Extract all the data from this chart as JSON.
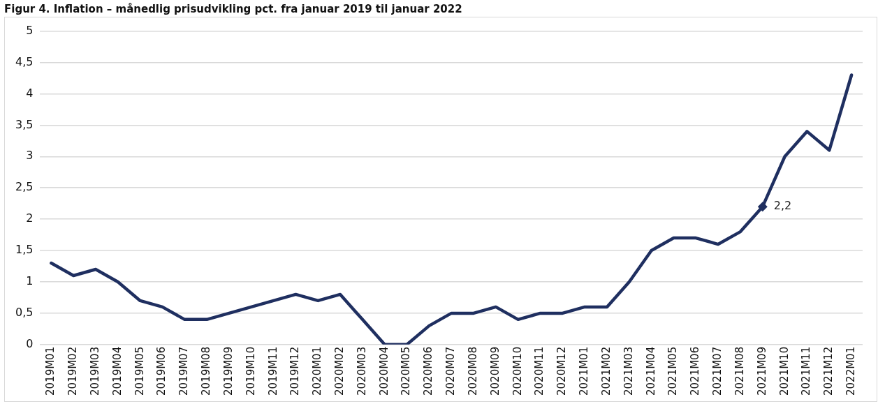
{
  "chart_data": {
    "type": "line",
    "title": "Figur 4. Inflation – månedlig prisudvikling pct. fra januar 2019 til januar 2022",
    "categories": [
      "2019M01",
      "2019M02",
      "2019M03",
      "2019M04",
      "2019M05",
      "2019M06",
      "2019M07",
      "2019M08",
      "2019M09",
      "2019M10",
      "2019M11",
      "2019M12",
      "2020M01",
      "2020M02",
      "2020M03",
      "2020M04",
      "2020M05",
      "2020M06",
      "2020M07",
      "2020M08",
      "2020M09",
      "2020M10",
      "2020M11",
      "2020M12",
      "2021M01",
      "2021M02",
      "2021M03",
      "2021M04",
      "2021M05",
      "2021M06",
      "2021M07",
      "2021M08",
      "2021M09",
      "2021M10",
      "2021M11",
      "2021M12",
      "2022M01"
    ],
    "series": [
      {
        "color": "#1f2f60",
        "values": [
          1.3,
          1.1,
          1.2,
          1.0,
          0.7,
          0.6,
          0.4,
          0.4,
          0.5,
          0.6,
          0.7,
          0.8,
          0.7,
          0.8,
          0.4,
          0.0,
          0.0,
          0.3,
          0.5,
          0.5,
          0.6,
          0.4,
          0.5,
          0.5,
          0.6,
          0.6,
          1.0,
          1.5,
          1.7,
          1.7,
          1.6,
          1.8,
          2.2,
          3.0,
          3.4,
          3.1,
          4.3
        ]
      }
    ],
    "ylim": [
      0,
      5
    ],
    "yticks": [
      0,
      {
        "value": 0.5,
        "label": "0,5"
      },
      1,
      {
        "value": 1.5,
        "label": "1,5"
      },
      2,
      {
        "value": 2.5,
        "label": "2,5"
      },
      3,
      {
        "value": 3.5,
        "label": "3,5"
      },
      4,
      {
        "value": 4.5,
        "label": "4,5"
      },
      5
    ],
    "annotations": [
      {
        "text": "2,2",
        "x": "2021M09",
        "y": 2.2
      }
    ],
    "grid": "y",
    "legend": false,
    "marker": "none",
    "line_style": "solid"
  }
}
